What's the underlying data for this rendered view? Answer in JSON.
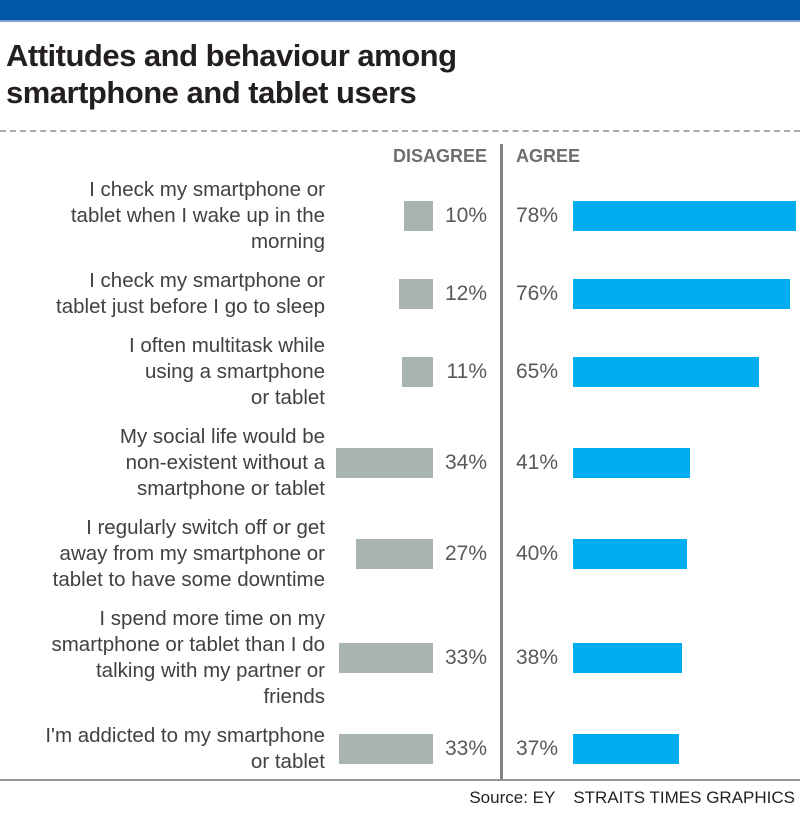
{
  "theme": {
    "banner_color": "#0057a7",
    "banner_edge_color": "#7ea4cb",
    "agree_color": "#00aeef",
    "disagree_color": "#a9b4b2",
    "divider_color": "#808285",
    "title_color": "#231f20",
    "label_color": "#414042",
    "value_color": "#58595b",
    "header_color": "#6d6e71"
  },
  "title": {
    "lines": [
      "Attitudes and behaviour among",
      "smartphone and tablet users"
    ]
  },
  "column_headers": {
    "disagree": "DISAGREE",
    "agree": "AGREE"
  },
  "chart_data": {
    "type": "bar",
    "orientation": "diverging-horizontal",
    "unit": "percent",
    "value_suffix": "%",
    "xlim": [
      0,
      80
    ],
    "grid": false,
    "legend_position": "column-headers",
    "categories": [
      "I check my smartphone or tablet when I wake up in the morning",
      "I check my smartphone or tablet just before I go to sleep",
      "I often multitask while using a smartphone or tablet",
      "My social life would be non-existent without a smartphone or tablet",
      "I regularly switch off or get away from my smartphone or tablet to have some downtime",
      "I spend more time on my smartphone or tablet than I do talking with my partner or friends",
      "I'm addicted to my smartphone or tablet"
    ],
    "category_lines": [
      [
        "I check my smartphone or",
        "tablet when I wake up in the",
        "morning"
      ],
      [
        "I check my smartphone or",
        "tablet just before I go to sleep"
      ],
      [
        "I often multitask while",
        "using a smartphone",
        "or tablet"
      ],
      [
        "My social life would be",
        "non-existent without a",
        "smartphone or tablet"
      ],
      [
        "I regularly switch off or get",
        "away from my smartphone or",
        "tablet to have some downtime"
      ],
      [
        "I spend more time on my",
        "smartphone or tablet than I do",
        "talking with my partner or",
        "friends"
      ],
      [
        "I'm addicted to my smartphone",
        "or tablet"
      ]
    ],
    "series": [
      {
        "name": "Disagree",
        "color": "#a9b4b2",
        "values": [
          10,
          12,
          11,
          34,
          27,
          33,
          33
        ]
      },
      {
        "name": "Agree",
        "color": "#00aeef",
        "values": [
          78,
          76,
          65,
          41,
          40,
          38,
          37
        ]
      }
    ]
  },
  "footer": {
    "source": "Source: EY",
    "credit": "STRAITS TIMES GRAPHICS"
  }
}
